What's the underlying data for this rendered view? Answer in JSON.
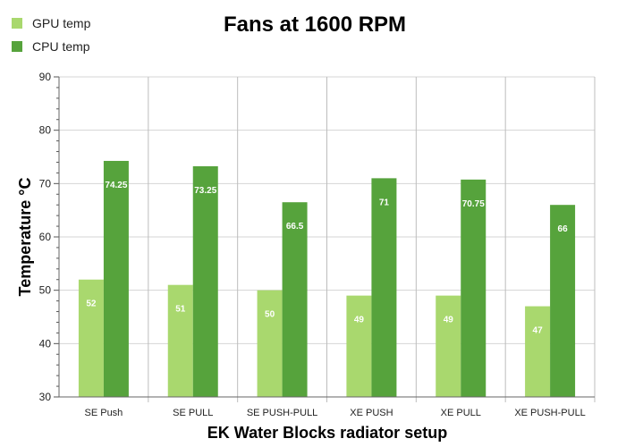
{
  "chart_data": {
    "type": "bar",
    "title": "Fans at 1600 RPM",
    "xlabel": "EK Water Blocks radiator setup",
    "ylabel": "Temperature °C",
    "ylim": [
      30,
      90
    ],
    "yticks": [
      30,
      40,
      50,
      60,
      70,
      80,
      90
    ],
    "grid": true,
    "legend_position": "top-left",
    "categories": [
      "SE Push",
      "SE PULL",
      "SE PUSH-PULL",
      "XE PUSH",
      "XE PULL",
      "XE PUSH-PULL"
    ],
    "series": [
      {
        "name": "GPU temp",
        "color": "#a9d86e",
        "values": [
          52,
          51,
          50,
          49,
          49,
          47
        ],
        "labels": [
          "52",
          "51",
          "50",
          "49",
          "49",
          "47"
        ]
      },
      {
        "name": "CPU temp",
        "color": "#56a33c",
        "values": [
          74.25,
          73.25,
          66.5,
          71,
          70.75,
          66
        ],
        "labels": [
          "74.25",
          "73.25",
          "66.5",
          "71",
          "70.75",
          "66"
        ]
      }
    ]
  }
}
